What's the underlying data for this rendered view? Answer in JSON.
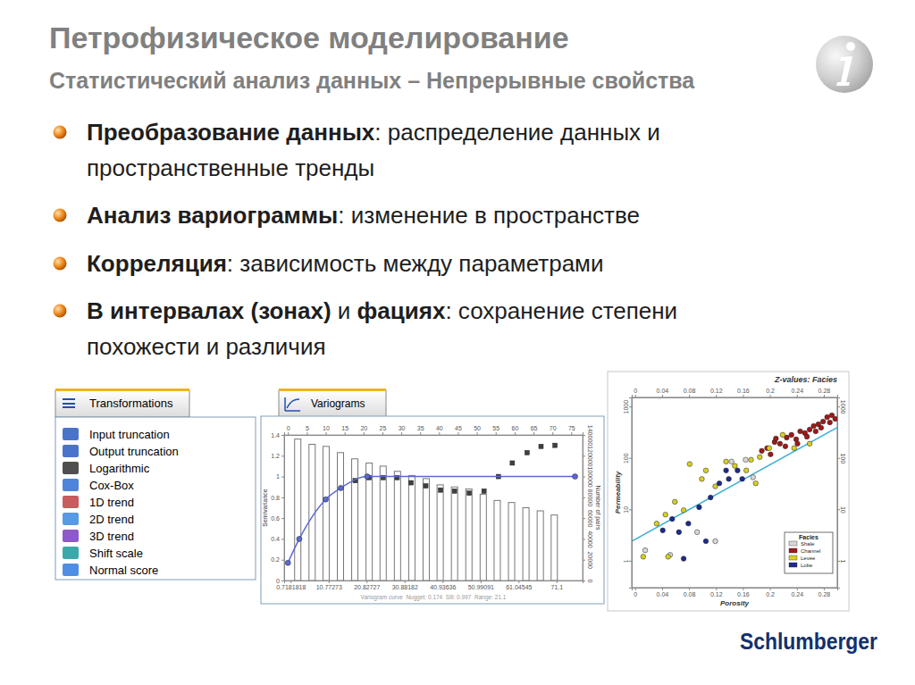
{
  "slide": {
    "title": "Петрофизическое моделирование",
    "subtitle": "Статистический анализ данных – Непрерывные свойства",
    "bullets": [
      {
        "lines": [
          [
            {
              "text": "Преобразование данных",
              "bold": true
            },
            {
              "text": ": распределение данных и",
              "bold": false
            }
          ],
          [
            {
              "text": "пространственные тренды",
              "bold": false
            }
          ]
        ]
      },
      {
        "lines": [
          [
            {
              "text": "Анализ вариограммы",
              "bold": true
            },
            {
              "text": ": изменение в пространстве",
              "bold": false
            }
          ]
        ]
      },
      {
        "lines": [
          [
            {
              "text": "Корреляция",
              "bold": true
            },
            {
              "text": ": зависимость между параметрами",
              "bold": false
            }
          ]
        ]
      },
      {
        "lines": [
          [
            {
              "text": "В интервалах (зонах)",
              "bold": true
            },
            {
              "text": " и ",
              "bold": false
            },
            {
              "text": "фациях",
              "bold": true
            },
            {
              "text": ": сохранение степени",
              "bold": false
            }
          ],
          [
            {
              "text": "похожести и различия",
              "bold": false
            }
          ]
        ]
      }
    ],
    "logo": "Schlumberger"
  },
  "transformations_panel": {
    "tab": "Transformations",
    "items": [
      "Input truncation",
      "Output truncation",
      "Logarithmic",
      "Cox-Box",
      "1D trend",
      "2D trend",
      "3D trend",
      "Shift scale",
      "Normal score"
    ]
  },
  "chart_data": [
    {
      "type": "variogram",
      "title": "Variograms",
      "y_label": "Semivariance",
      "y2_label": "Number of pairs",
      "annotation": "Variogram curve  Nugget: 0.174  Sill: 0.997  Range: 21.1",
      "grid": false,
      "xlim": [
        -1,
        78
      ],
      "xticks": [
        0.7181818,
        10.77273,
        20.82727,
        30.88182,
        40.93636,
        50.99091,
        61.04545,
        71.1
      ],
      "x2lim": [
        -1,
        78
      ],
      "x2ticks": [
        0,
        5,
        10,
        15,
        20,
        25,
        30,
        35,
        40,
        45,
        50,
        55,
        60,
        65,
        70,
        75
      ],
      "ylim": [
        0,
        1.4
      ],
      "yticks": [
        0,
        0.2,
        0.4,
        0.6,
        0.8,
        1,
        1.2,
        1.4
      ],
      "y2lim": [
        0,
        140000
      ],
      "y2ticks": [
        0,
        20000,
        40000,
        60000,
        80000,
        100000,
        120000,
        140000
      ],
      "series": [
        {
          "type": "bar",
          "axis": "y2",
          "color": "#ffffff",
          "x": [
            2.6,
            6.4,
            10.1,
            13.9,
            17.7,
            21.5,
            25.2,
            29.0,
            32.8,
            36.6,
            40.3,
            44.1,
            47.9,
            51.7,
            55.4,
            59.2,
            63.0,
            66.8,
            70.5
          ],
          "values": [
            136000,
            131000,
            129000,
            123000,
            117000,
            113000,
            110000,
            105000,
            101000,
            98000,
            92000,
            90000,
            88000,
            83000,
            77000,
            75000,
            70000,
            67000,
            63000
          ]
        },
        {
          "type": "scatter",
          "marker": "square",
          "color": "#404040",
          "x": [
            17.8,
            21.5,
            25.2,
            28.9,
            32.6,
            36.5,
            40.4,
            44.1,
            48.0,
            51.9,
            55.7,
            59.4,
            63.3,
            67.0,
            70.7
          ],
          "values": [
            0.96,
            0.99,
            0.99,
            0.99,
            0.94,
            0.91,
            0.87,
            0.86,
            0.84,
            0.86,
            1.0,
            1.13,
            1.23,
            1.29,
            1.3
          ]
        },
        {
          "type": "line",
          "marker": "circle",
          "color": "#5a6ad0",
          "x": [
            0,
            3,
            10,
            14,
            21,
            76
          ],
          "values": [
            0.17,
            0.4,
            0.78,
            0.89,
            1.0,
            1.0
          ]
        }
      ]
    },
    {
      "type": "scatter",
      "title": "Z-values: Facies",
      "x_label": "Porosity",
      "y_label": "Permeability",
      "log": "y",
      "grid": false,
      "legend": "lower right",
      "legend_title": "Facies",
      "xlim": [
        -0.005,
        0.3
      ],
      "xticks": [
        0,
        0.04,
        0.08,
        0.12,
        0.16,
        0.2,
        0.24,
        0.28
      ],
      "ylim": [
        0.3,
        1500
      ],
      "yticks": [
        1,
        10,
        100,
        1000
      ],
      "series": [
        {
          "type": "line",
          "color": "#3aaed8",
          "x": [
            -0.005,
            0.3
          ],
          "values": [
            2.4,
            390
          ]
        },
        {
          "name": "Shale",
          "marker": "circle",
          "color": "#d8d8d8",
          "x": [
            0.015,
            0.052,
            0.092,
            0.119,
            0.143,
            0.164,
            0.175
          ],
          "values": [
            1.6,
            1.3,
            3.6,
            2.4,
            85,
            92,
            42
          ]
        },
        {
          "name": "Channel",
          "marker": "circle",
          "color": "#a01818",
          "x": [
            0.196,
            0.207,
            0.215,
            0.225,
            0.232,
            0.239,
            0.245,
            0.252,
            0.259,
            0.265,
            0.272,
            0.279,
            0.285,
            0.292,
            0.223,
            0.241,
            0.255,
            0.268,
            0.188,
            0.209,
            0.201,
            0.276,
            0.289,
            0.297
          ],
          "values": [
            155,
            204,
            189,
            249,
            281,
            230,
            329,
            304,
            356,
            418,
            452,
            509,
            621,
            673,
            168,
            189,
            259,
            329,
            137,
            239,
            117,
            386,
            490,
            574
          ]
        },
        {
          "name": "Levee",
          "marker": "circle",
          "color": "#d8d020",
          "x": [
            0.012,
            0.032,
            0.045,
            0.059,
            0.072,
            0.081,
            0.099,
            0.105,
            0.119,
            0.135,
            0.148,
            0.165,
            0.172,
            0.185,
            0.199,
            0.219,
            0.236,
            0.259,
            0.179,
            0.049
          ],
          "values": [
            1.2,
            5.3,
            7.9,
            14,
            9.6,
            76,
            39,
            57,
            28,
            85,
            70,
            57,
            92,
            104,
            155,
            281,
            155,
            189,
            32,
            1.2
          ]
        },
        {
          "name": "Lobe",
          "marker": "circle",
          "color": "#1c2a8c",
          "x": [
            0.041,
            0.055,
            0.065,
            0.079,
            0.095,
            0.112,
            0.125,
            0.139,
            0.152,
            0.135,
            0.159,
            0.105,
            0.072
          ],
          "values": [
            3.9,
            6.5,
            3.6,
            5.3,
            11,
            17,
            32,
            39,
            57,
            57,
            39,
            2.4,
            1.1
          ]
        }
      ]
    }
  ]
}
